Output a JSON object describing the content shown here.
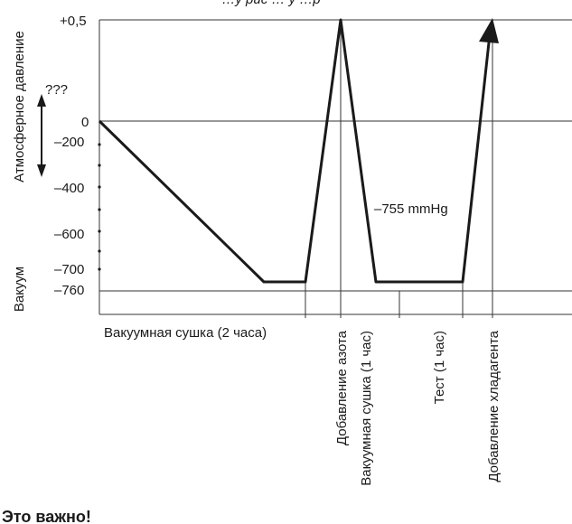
{
  "top_caption": "…у рис  … у    …р",
  "axis": {
    "atmospheric_label": "Атмосферное давление",
    "vacuum_label": "Вакуум",
    "unknown_label": "???"
  },
  "ticks": [
    {
      "label": "+0,5",
      "value": 0.5
    },
    {
      "label": "0",
      "value": 0
    },
    {
      "label": "–200",
      "value": -200
    },
    {
      "label": "–400",
      "value": -400
    },
    {
      "label": "–600",
      "value": -600
    },
    {
      "label": "–700",
      "value": -700
    },
    {
      "label": "–760",
      "value": -760
    }
  ],
  "pressure_note": "–755 mmHg",
  "stages": {
    "vacuum_drying_2h": "Вакуумная сушка (2 часа)",
    "nitrogen": "Добавление азота",
    "vacuum_drying_1h": "Вакуумная сушка (1 час)",
    "test_1h": "Тест (1 час)",
    "refrigerant": "Добавление хладагента"
  },
  "important": "Это важно!",
  "profile": [
    {
      "point": "start",
      "value": 0
    },
    {
      "point": "end-vacuum-drying-2h",
      "value": -755
    },
    {
      "point": "nitrogen-peak",
      "value": 0.5
    },
    {
      "point": "end-vacuum-drying-1h",
      "value": -755
    },
    {
      "point": "end-test",
      "value": -755
    },
    {
      "point": "refrigerant-peak",
      "value": 0.5
    }
  ],
  "colors": {
    "line": "#1a1a1a",
    "grid": "#333333"
  }
}
